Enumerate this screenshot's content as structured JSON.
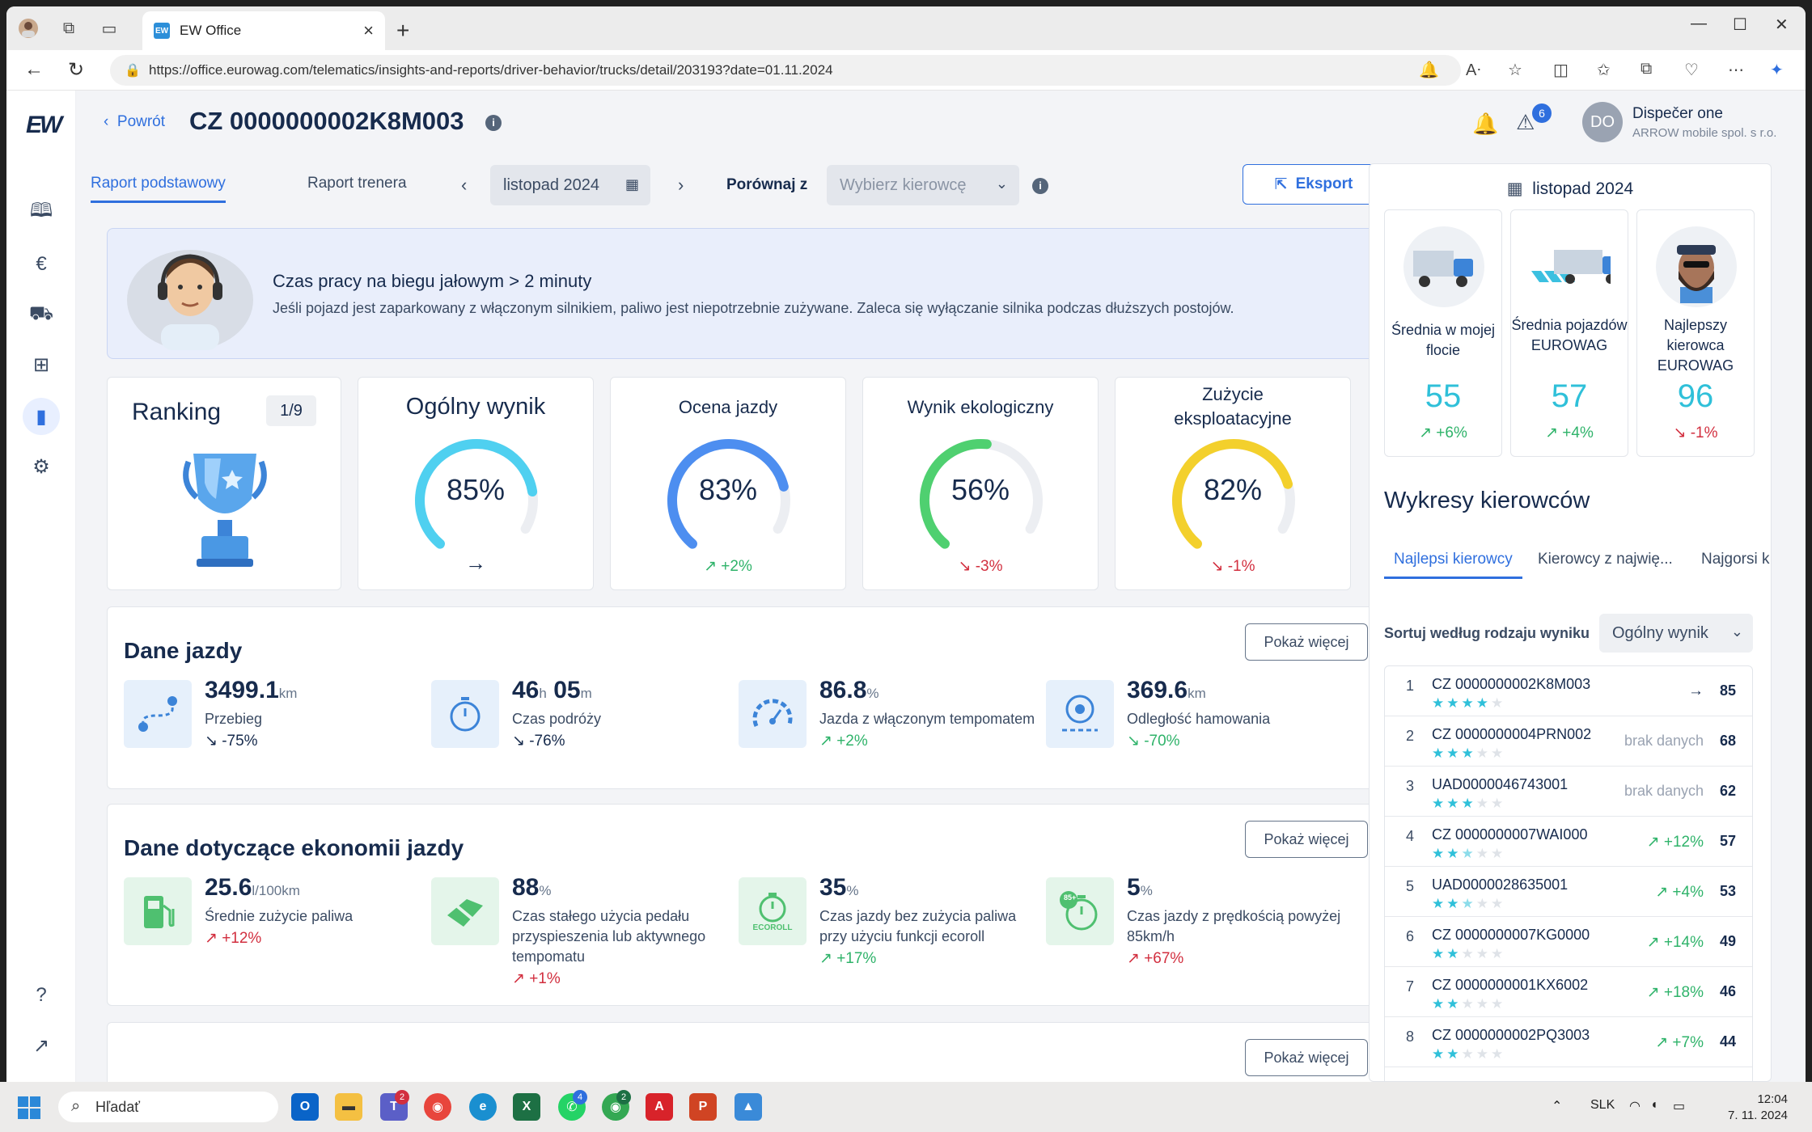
{
  "browser": {
    "tab_title": "EW Office",
    "tab_favicon": "EW",
    "url": "https://office.eurowag.com/telematics/insights-and-reports/driver-behavior/trucks/detail/203193?date=01.11.2024"
  },
  "header": {
    "back_label": "Powrót",
    "title": "CZ 0000000002K8M003",
    "alert_count": "6",
    "user_initials": "DO",
    "user_name": "Dispečer one",
    "user_org": "ARROW mobile spol. s r.o."
  },
  "toolbar": {
    "tabs": [
      {
        "label": "Raport podstawowy",
        "active": true
      },
      {
        "label": "Raport trenera",
        "active": false
      }
    ],
    "month": "listopad 2024",
    "compare_label": "Porównaj z",
    "compare_placeholder": "Wybierz kierowcę",
    "export_label": "Eksport"
  },
  "tip": {
    "title": "Czas pracy na biegu jałowym > 2 minuty",
    "text": "Jeśli pojazd jest zaparkowany z włączonym silnikiem, paliwo jest niepotrzebnie zużywane. Zaleca się wyłączanie silnika podczas dłuższych postojów."
  },
  "ranking": {
    "title": "Ranking",
    "position": "1/9"
  },
  "scores": [
    {
      "title": "Ogólny wynik",
      "value": 85,
      "display": "85%",
      "trend": "→",
      "trend_dir": "neutral",
      "color": "#4fd0f0"
    },
    {
      "title": "Ocena jazdy",
      "value": 83,
      "display": "83%",
      "trend": "↗ +2%",
      "trend_dir": "up",
      "color": "#4d8ef0"
    },
    {
      "title": "Wynik ekologiczny",
      "value": 56,
      "display": "56%",
      "trend": "↘ -3%",
      "trend_dir": "down",
      "color": "#4fd070"
    },
    {
      "title": "Zużycie eksploatacyjne",
      "value": 82,
      "display": "82%",
      "trend": "↘ -1%",
      "trend_dir": "down",
      "color": "#f3d02c"
    }
  ],
  "driving": {
    "title": "Dane jazdy",
    "more": "Pokaż więcej",
    "metrics": [
      {
        "value": "3499.1",
        "unit": "km",
        "label": "Przebieg",
        "trend": "↘ -75%",
        "trend_dir": "neutral",
        "icon": "route-icon"
      },
      {
        "value": "46",
        "unit": "h",
        "value2": "05",
        "unit2": "m",
        "label": "Czas podróży",
        "trend": "↘ -76%",
        "trend_dir": "neutral",
        "icon": "stopwatch-icon"
      },
      {
        "value": "86.8",
        "unit": "%",
        "label": "Jazda z włączonym tempomatem",
        "trend": "↗ +2%",
        "trend_dir": "up",
        "icon": "speedometer-icon"
      },
      {
        "value": "369.6",
        "unit": "km",
        "label": "Odległość hamowania",
        "trend": "↘ -70%",
        "trend_dir": "up",
        "icon": "brake-disc-icon"
      }
    ]
  },
  "economy": {
    "title": "Dane dotyczące ekonomii jazdy",
    "more": "Pokaż więcej",
    "metrics": [
      {
        "value": "25.6",
        "unit": "l/100km",
        "label": "Średnie zużycie paliwa",
        "trend": "↗ +12%",
        "trend_dir": "down",
        "icon": "fuel-pump-icon"
      },
      {
        "value": "88",
        "unit": "%",
        "label": "Czas stałego użycia pedału przyspieszenia lub aktywnego tempomatu",
        "trend": "↗ +1%",
        "trend_dir": "down",
        "icon": "pedal-icon"
      },
      {
        "value": "35",
        "unit": "%",
        "label": "Czas jazdy bez zużycia paliwa przy użyciu funkcji ecoroll",
        "trend": "↗ +17%",
        "trend_dir": "up",
        "icon": "ecoroll-icon",
        "icon_text": "ECOROLL"
      },
      {
        "value": "5",
        "unit": "%",
        "label": "Czas jazdy z prędkością powyżej 85km/h",
        "trend": "↗ +67%",
        "trend_dir": "down",
        "icon": "speed-85-icon",
        "icon_text": "85+"
      }
    ]
  },
  "third_section_more": "Pokaż więcej",
  "right_panel": {
    "month": "listopad 2024",
    "compare_cards": [
      {
        "name": "Średnia w mojej flocie",
        "value": "55",
        "trend": "↗ +6%",
        "trend_dir": "up",
        "icon": "truck-icon"
      },
      {
        "name": "Średnia pojazdów EUROWAG",
        "value": "57",
        "trend": "↗ +4%",
        "trend_dir": "up",
        "icon": "truck-fleet-icon"
      },
      {
        "name": "Najlepszy kierowca EUROWAG",
        "value": "96",
        "trend": "↘ -1%",
        "trend_dir": "down",
        "icon": "driver-avatar-icon"
      }
    ],
    "heading": "Wykresy kierowców",
    "tabs": [
      "Najlepsi kierowcy",
      "Kierowcy z najwię...",
      "Najgorsi k"
    ],
    "sort_label": "Sortuj według rodzaju wyniku",
    "sort_value": "Ogólny wynik",
    "drivers": [
      {
        "rank": "1",
        "name": "CZ 0000000002K8M003",
        "stars": 4,
        "trend": "→",
        "trend_dir": "neutral",
        "score": "85"
      },
      {
        "rank": "2",
        "name": "CZ 0000000004PRN002",
        "stars": 3,
        "trend": "brak danych",
        "trend_dir": "nodata",
        "score": "68"
      },
      {
        "rank": "3",
        "name": "UAD0000046743001",
        "stars": 3,
        "trend": "brak danych",
        "trend_dir": "nodata",
        "score": "62"
      },
      {
        "rank": "4",
        "name": "CZ 0000000007WAI000",
        "stars": 2.5,
        "trend": "↗ +12%",
        "trend_dir": "up",
        "score": "57"
      },
      {
        "rank": "5",
        "name": "UAD0000028635001",
        "stars": 2.5,
        "trend": "↗ +4%",
        "trend_dir": "up",
        "score": "53"
      },
      {
        "rank": "6",
        "name": "CZ 0000000007KG0000",
        "stars": 2,
        "trend": "↗ +14%",
        "trend_dir": "up",
        "score": "49"
      },
      {
        "rank": "7",
        "name": "CZ 0000000001KX6002",
        "stars": 2,
        "trend": "↗ +18%",
        "trend_dir": "up",
        "score": "46"
      },
      {
        "rank": "8",
        "name": "CZ 0000000002PQ3003",
        "stars": 2,
        "trend": "↗ +7%",
        "trend_dir": "up",
        "score": "44"
      }
    ]
  },
  "taskbar": {
    "search_placeholder": "Hľadať",
    "lang": "SLK",
    "time": "12:04",
    "date": "7. 11. 2024",
    "badges": {
      "teams": "2",
      "whatsapp": "4",
      "chrome2": "2"
    }
  }
}
